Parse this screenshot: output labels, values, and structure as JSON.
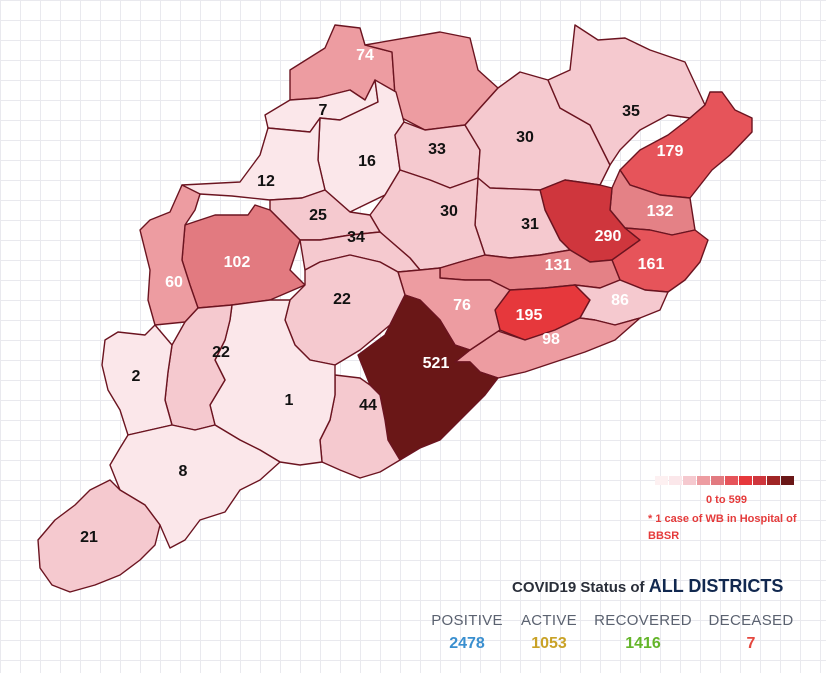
{
  "districts": [
    {
      "id": "bargarh-74",
      "value": "74",
      "color": "#ed9ca1",
      "text_color": "#ffffff"
    },
    {
      "id": "sundargarh-north",
      "value": "",
      "color": "#ed9ca1",
      "text_color": "#ffffff"
    },
    {
      "id": "jharsuguda-7",
      "value": "7",
      "color": "#fbe7ea",
      "text_color": "#111111"
    },
    {
      "id": "sambalpur-16",
      "value": "16",
      "color": "#fbe7ea",
      "text_color": "#111111"
    },
    {
      "id": "deogarh-33",
      "value": "33",
      "color": "#f5c9cf",
      "text_color": "#111111"
    },
    {
      "id": "keonjhar-30",
      "value": "30",
      "color": "#f5c9cf",
      "text_color": "#111111"
    },
    {
      "id": "mayurbhanj-35",
      "value": "35",
      "color": "#f5c9cf",
      "text_color": "#111111"
    },
    {
      "id": "balasore-179",
      "value": "179",
      "color": "#e6545a",
      "text_color": "#ffffff"
    },
    {
      "id": "bhadrak-132",
      "value": "132",
      "color": "#e48186",
      "text_color": "#ffffff"
    },
    {
      "id": "jajpur-290",
      "value": "290",
      "color": "#cf363d",
      "text_color": "#ffffff"
    },
    {
      "id": "kendrapara-161",
      "value": "161",
      "color": "#e6545a",
      "text_color": "#ffffff"
    },
    {
      "id": "dhenkanal-31",
      "value": "31",
      "color": "#f5c9cf",
      "text_color": "#111111"
    },
    {
      "id": "angul-30",
      "value": "30",
      "color": "#f5c9cf",
      "text_color": "#111111"
    },
    {
      "id": "subarnapur-12",
      "value": "12",
      "color": "#fbe7ea",
      "text_color": "#111111"
    },
    {
      "id": "boudh-25",
      "value": "25",
      "color": "#f5c9cf",
      "text_color": "#111111"
    },
    {
      "id": "bolangir-102",
      "value": "102",
      "color": "#e27a80",
      "text_color": "#ffffff"
    },
    {
      "id": "nuapada-60",
      "value": "60",
      "color": "#ed9ca1",
      "text_color": "#ffffff"
    },
    {
      "id": "nayagarh-34",
      "value": "34",
      "color": "#f5c9cf",
      "text_color": "#111111"
    },
    {
      "id": "cuttack-131",
      "value": "131",
      "color": "#e48186",
      "text_color": "#ffffff"
    },
    {
      "id": "khurda-195",
      "value": "195",
      "color": "#e6383c",
      "text_color": "#ffffff"
    },
    {
      "id": "jagatsinghpur-86",
      "value": "86",
      "color": "#f5c9cf",
      "text_color": "#ffffff"
    },
    {
      "id": "puri-98",
      "value": "98",
      "color": "#ed9ca1",
      "text_color": "#ffffff"
    },
    {
      "id": "nayagarh-76",
      "value": "76",
      "color": "#ed9ca1",
      "text_color": "#ffffff"
    },
    {
      "id": "kandhamal-22",
      "value": "22",
      "color": "#f5c9cf",
      "text_color": "#111111"
    },
    {
      "id": "ganjam-521",
      "value": "521",
      "color": "#6a1717",
      "text_color": "#ffffff"
    },
    {
      "id": "gajapati-44",
      "value": "44",
      "color": "#f5c9cf",
      "text_color": "#111111"
    },
    {
      "id": "rayagada-1",
      "value": "1",
      "color": "#fbe7ea",
      "text_color": "#111111"
    },
    {
      "id": "kalahandi-22",
      "value": "22",
      "color": "#f5c9cf",
      "text_color": "#111111"
    },
    {
      "id": "nabarangpur-2",
      "value": "2",
      "color": "#fbe7ea",
      "text_color": "#111111"
    },
    {
      "id": "koraput-8",
      "value": "8",
      "color": "#fbe7ea",
      "text_color": "#111111"
    },
    {
      "id": "malkangiri-21",
      "value": "21",
      "color": "#f5c9cf",
      "text_color": "#111111"
    }
  ],
  "legend": {
    "scale_colors": [
      "#fdf0f1",
      "#fbe7ea",
      "#f5c9cf",
      "#ed9ca1",
      "#e27a80",
      "#e6545a",
      "#e6383c",
      "#cf363d",
      "#a02525",
      "#6a1717"
    ],
    "range": "0 to 599",
    "note": "* 1 case of WB in Hospital of BBSR"
  },
  "status": {
    "title_prefix": "COVID19 Status of",
    "title_emphasis": "ALL DISTRICTS",
    "stats": [
      {
        "label": "POSITIVE",
        "value": "2478",
        "color": "#3a8fcf"
      },
      {
        "label": "ACTIVE",
        "value": "1053",
        "color": "#c9a227"
      },
      {
        "label": "RECOVERED",
        "value": "1416",
        "color": "#64b52a"
      },
      {
        "label": "DECEASED",
        "value": "7",
        "color": "#e5473e"
      }
    ]
  }
}
